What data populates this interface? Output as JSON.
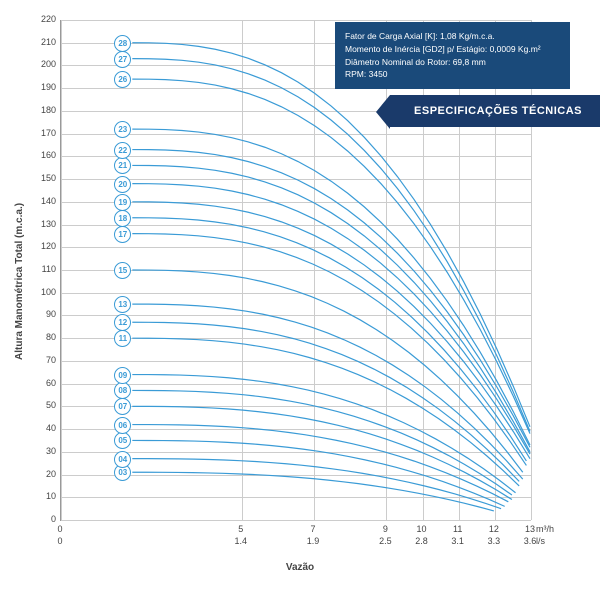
{
  "chart": {
    "type": "line-family",
    "ylabel": "Altura Manométrica Total (m.c.a.)",
    "xlabel": "Vazão",
    "x_unit1": "m³/h",
    "x_unit2": "l/s",
    "xlim": [
      0,
      13
    ],
    "ylim": [
      0,
      220
    ],
    "ytick_step": 10,
    "xticks_mh": [
      0,
      5,
      7,
      9,
      10,
      11,
      12,
      13
    ],
    "xticks_ls": [
      0,
      1.4,
      1.9,
      2.5,
      2.8,
      3.1,
      3.3,
      3.6
    ],
    "curve_color": "#3a9bd6",
    "grid_color": "#cccccc",
    "axis_color": "#999999",
    "background": "#ffffff",
    "curves": [
      {
        "label": "03",
        "start_y": 21,
        "end_x": 12,
        "end_y": 4
      },
      {
        "label": "04",
        "start_y": 27,
        "end_x": 12.2,
        "end_y": 5
      },
      {
        "label": "05",
        "start_y": 35,
        "end_x": 12.3,
        "end_y": 6
      },
      {
        "label": "06",
        "start_y": 42,
        "end_x": 12.4,
        "end_y": 8
      },
      {
        "label": "07",
        "start_y": 50,
        "end_x": 12.5,
        "end_y": 9
      },
      {
        "label": "08",
        "start_y": 57,
        "end_x": 12.5,
        "end_y": 11
      },
      {
        "label": "09",
        "start_y": 64,
        "end_x": 12.6,
        "end_y": 12
      },
      {
        "label": "11",
        "start_y": 80,
        "end_x": 12.7,
        "end_y": 15
      },
      {
        "label": "12",
        "start_y": 87,
        "end_x": 12.7,
        "end_y": 17
      },
      {
        "label": "13",
        "start_y": 95,
        "end_x": 12.8,
        "end_y": 18
      },
      {
        "label": "15",
        "start_y": 110,
        "end_x": 12.8,
        "end_y": 21
      },
      {
        "label": "17",
        "start_y": 126,
        "end_x": 12.9,
        "end_y": 24
      },
      {
        "label": "18",
        "start_y": 133,
        "end_x": 12.9,
        "end_y": 26
      },
      {
        "label": "19",
        "start_y": 140,
        "end_x": 13,
        "end_y": 27
      },
      {
        "label": "20",
        "start_y": 148,
        "end_x": 13,
        "end_y": 29
      },
      {
        "label": "21",
        "start_y": 156,
        "end_x": 13,
        "end_y": 30
      },
      {
        "label": "22",
        "start_y": 163,
        "end_x": 13,
        "end_y": 32
      },
      {
        "label": "23",
        "start_y": 172,
        "end_x": 13,
        "end_y": 33
      },
      {
        "label": "26",
        "start_y": 194,
        "end_x": 13,
        "end_y": 38
      },
      {
        "label": "27",
        "start_y": 203,
        "end_x": 13,
        "end_y": 39
      },
      {
        "label": "28",
        "start_y": 210,
        "end_x": 13,
        "end_y": 41
      }
    ]
  },
  "spec": {
    "line1": "Fator de Carga Axial [K]: 1,08 Kg/m.c.a.",
    "line2": "Momento de Inércia [GD2] p/ Estágio: 0,0009 Kg.m²",
    "line3": "Diâmetro Nominal do Rotor: 69,8 mm",
    "line4": "RPM: 3450",
    "box_bg": "#1a4a7a",
    "box_text": "#ffffff"
  },
  "banner": {
    "text": "ESPECIFICAÇÕES TÉCNICAS",
    "bg": "#1a3a6a",
    "text_color": "#ffffff"
  }
}
